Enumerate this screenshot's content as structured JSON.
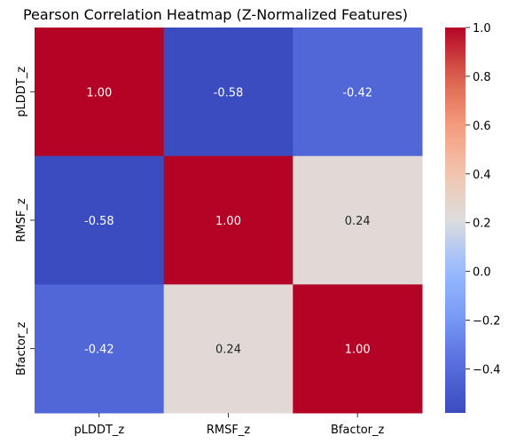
{
  "chart_data": {
    "type": "heatmap",
    "title": "Pearson Correlation Heatmap (Z-Normalized Features)",
    "x_categories": [
      "pLDDT_z",
      "RMSF_z",
      "Bfactor_z"
    ],
    "y_categories": [
      "pLDDT_z",
      "RMSF_z",
      "Bfactor_z"
    ],
    "values": [
      [
        1.0,
        -0.58,
        -0.42
      ],
      [
        -0.58,
        1.0,
        0.24
      ],
      [
        -0.42,
        0.24,
        1.0
      ]
    ],
    "value_labels": [
      [
        "1.00",
        "-0.58",
        "-0.42"
      ],
      [
        "-0.58",
        "1.00",
        "0.24"
      ],
      [
        "-0.42",
        "0.24",
        "1.00"
      ]
    ],
    "colormap": "coolwarm",
    "colorbar": {
      "range": [
        -0.58,
        1.0
      ],
      "ticks": [
        -0.4,
        -0.2,
        0.0,
        0.2,
        0.4,
        0.6,
        0.8,
        1.0
      ],
      "tick_labels": [
        "−0.4",
        "−0.2",
        "0.0",
        "0.2",
        "0.4",
        "0.6",
        "0.8",
        "1.0"
      ]
    },
    "colors": {
      "min": "#3b4cc0",
      "mid": "#dddddd",
      "max": "#b40426"
    }
  }
}
